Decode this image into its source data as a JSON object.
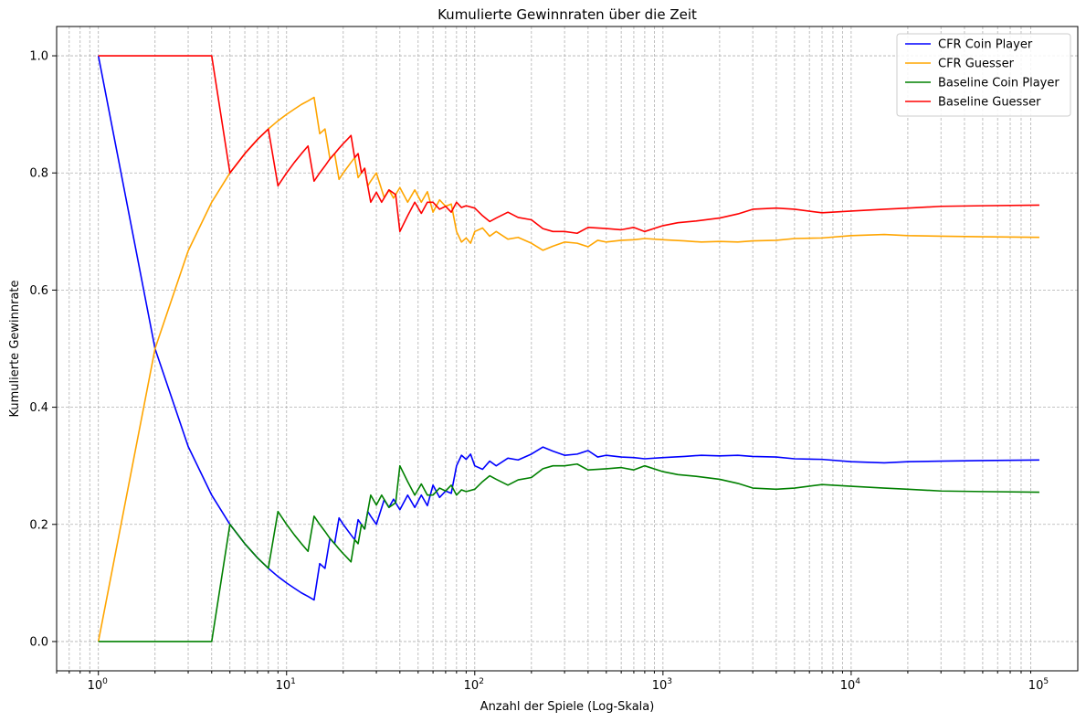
{
  "chart_data": {
    "type": "line",
    "title": "Kumulierte Gewinnraten über die Zeit",
    "xlabel": "Anzahl der Spiele (Log-Skala)",
    "ylabel": "Kumulierte Gewinnrate",
    "xscale": "log",
    "xlim": [
      0.6,
      160000
    ],
    "ylim": [
      -0.05,
      1.05
    ],
    "x_ticks": [
      1,
      10,
      100,
      1000,
      10000,
      100000
    ],
    "x_tick_labels": [
      {
        "base": "10",
        "exp": "0"
      },
      {
        "base": "10",
        "exp": "1"
      },
      {
        "base": "10",
        "exp": "2"
      },
      {
        "base": "10",
        "exp": "3"
      },
      {
        "base": "10",
        "exp": "4"
      },
      {
        "base": "10",
        "exp": "5"
      }
    ],
    "y_ticks": [
      0.0,
      0.2,
      0.4,
      0.6,
      0.8,
      1.0
    ],
    "y_tick_labels": [
      "0.0",
      "0.2",
      "0.4",
      "0.6",
      "0.8",
      "1.0"
    ],
    "grid": true,
    "legend_position": "top-right",
    "series": [
      {
        "name": "CFR Coin Player",
        "color": "#0000ff",
        "points": [
          [
            1,
            1.0
          ],
          [
            2,
            0.5
          ],
          [
            3,
            0.333
          ],
          [
            4,
            0.25
          ],
          [
            5,
            0.2
          ],
          [
            6,
            0.167
          ],
          [
            7,
            0.143
          ],
          [
            8,
            0.125
          ],
          [
            9,
            0.111
          ],
          [
            10,
            0.1
          ],
          [
            11,
            0.091
          ],
          [
            12,
            0.083
          ],
          [
            13,
            0.077
          ],
          [
            14,
            0.071
          ],
          [
            15,
            0.133
          ],
          [
            16,
            0.125
          ],
          [
            17,
            0.176
          ],
          [
            18,
            0.167
          ],
          [
            19,
            0.211
          ],
          [
            20,
            0.2
          ],
          [
            22,
            0.182
          ],
          [
            23,
            0.174
          ],
          [
            24,
            0.208
          ],
          [
            26,
            0.192
          ],
          [
            27,
            0.222
          ],
          [
            28,
            0.214
          ],
          [
            30,
            0.2
          ],
          [
            33,
            0.242
          ],
          [
            35,
            0.229
          ],
          [
            37,
            0.243
          ],
          [
            40,
            0.225
          ],
          [
            44,
            0.25
          ],
          [
            48,
            0.229
          ],
          [
            52,
            0.25
          ],
          [
            56,
            0.232
          ],
          [
            60,
            0.267
          ],
          [
            65,
            0.246
          ],
          [
            70,
            0.257
          ],
          [
            75,
            0.253
          ],
          [
            80,
            0.3
          ],
          [
            85,
            0.318
          ],
          [
            90,
            0.311
          ],
          [
            95,
            0.32
          ],
          [
            100,
            0.3
          ],
          [
            110,
            0.294
          ],
          [
            120,
            0.308
          ],
          [
            130,
            0.3
          ],
          [
            150,
            0.313
          ],
          [
            170,
            0.31
          ],
          [
            200,
            0.32
          ],
          [
            230,
            0.332
          ],
          [
            260,
            0.325
          ],
          [
            300,
            0.318
          ],
          [
            350,
            0.32
          ],
          [
            400,
            0.326
          ],
          [
            450,
            0.315
          ],
          [
            500,
            0.318
          ],
          [
            600,
            0.315
          ],
          [
            700,
            0.314
          ],
          [
            800,
            0.312
          ],
          [
            1000,
            0.314
          ],
          [
            1300,
            0.316
          ],
          [
            1600,
            0.318
          ],
          [
            2000,
            0.317
          ],
          [
            2500,
            0.318
          ],
          [
            3000,
            0.316
          ],
          [
            4000,
            0.315
          ],
          [
            5000,
            0.312
          ],
          [
            7000,
            0.311
          ],
          [
            10000,
            0.307
          ],
          [
            15000,
            0.305
          ],
          [
            20000,
            0.307
          ],
          [
            30000,
            0.308
          ],
          [
            50000,
            0.309
          ],
          [
            100000,
            0.31
          ]
        ]
      },
      {
        "name": "CFR Guesser",
        "color": "#ffa500",
        "points": [
          [
            1,
            0.0
          ],
          [
            2,
            0.5
          ],
          [
            3,
            0.667
          ],
          [
            4,
            0.75
          ],
          [
            5,
            0.8
          ],
          [
            6,
            0.833
          ],
          [
            7,
            0.857
          ],
          [
            8,
            0.875
          ],
          [
            9,
            0.889
          ],
          [
            10,
            0.9
          ],
          [
            11,
            0.909
          ],
          [
            12,
            0.917
          ],
          [
            13,
            0.923
          ],
          [
            14,
            0.929
          ],
          [
            15,
            0.867
          ],
          [
            16,
            0.875
          ],
          [
            17,
            0.824
          ],
          [
            18,
            0.833
          ],
          [
            19,
            0.789
          ],
          [
            20,
            0.8
          ],
          [
            22,
            0.818
          ],
          [
            23,
            0.826
          ],
          [
            24,
            0.792
          ],
          [
            26,
            0.808
          ],
          [
            27,
            0.778
          ],
          [
            28,
            0.786
          ],
          [
            30,
            0.8
          ],
          [
            33,
            0.758
          ],
          [
            35,
            0.771
          ],
          [
            37,
            0.757
          ],
          [
            40,
            0.775
          ],
          [
            44,
            0.75
          ],
          [
            48,
            0.771
          ],
          [
            52,
            0.75
          ],
          [
            56,
            0.768
          ],
          [
            60,
            0.733
          ],
          [
            65,
            0.754
          ],
          [
            70,
            0.743
          ],
          [
            75,
            0.747
          ],
          [
            80,
            0.7
          ],
          [
            85,
            0.682
          ],
          [
            90,
            0.689
          ],
          [
            95,
            0.68
          ],
          [
            100,
            0.7
          ],
          [
            110,
            0.706
          ],
          [
            120,
            0.692
          ],
          [
            130,
            0.7
          ],
          [
            150,
            0.687
          ],
          [
            170,
            0.69
          ],
          [
            200,
            0.68
          ],
          [
            230,
            0.668
          ],
          [
            260,
            0.675
          ],
          [
            300,
            0.682
          ],
          [
            350,
            0.68
          ],
          [
            400,
            0.674
          ],
          [
            450,
            0.685
          ],
          [
            500,
            0.682
          ],
          [
            600,
            0.685
          ],
          [
            700,
            0.686
          ],
          [
            800,
            0.688
          ],
          [
            1000,
            0.686
          ],
          [
            1300,
            0.684
          ],
          [
            1600,
            0.682
          ],
          [
            2000,
            0.683
          ],
          [
            2500,
            0.682
          ],
          [
            3000,
            0.684
          ],
          [
            4000,
            0.685
          ],
          [
            5000,
            0.688
          ],
          [
            7000,
            0.689
          ],
          [
            10000,
            0.693
          ],
          [
            15000,
            0.695
          ],
          [
            20000,
            0.693
          ],
          [
            30000,
            0.692
          ],
          [
            50000,
            0.691
          ],
          [
            100000,
            0.69
          ]
        ]
      },
      {
        "name": "Baseline Coin Player",
        "color": "#008000",
        "points": [
          [
            1,
            0.0
          ],
          [
            2,
            0.0
          ],
          [
            3,
            0.0
          ],
          [
            4,
            0.0
          ],
          [
            5,
            0.2
          ],
          [
            6,
            0.167
          ],
          [
            7,
            0.143
          ],
          [
            8,
            0.125
          ],
          [
            9,
            0.222
          ],
          [
            10,
            0.2
          ],
          [
            11,
            0.182
          ],
          [
            12,
            0.167
          ],
          [
            13,
            0.154
          ],
          [
            14,
            0.214
          ],
          [
            15,
            0.2
          ],
          [
            16,
            0.188
          ],
          [
            17,
            0.176
          ],
          [
            18,
            0.167
          ],
          [
            19,
            0.158
          ],
          [
            20,
            0.15
          ],
          [
            21,
            0.143
          ],
          [
            22,
            0.136
          ],
          [
            23,
            0.174
          ],
          [
            24,
            0.167
          ],
          [
            25,
            0.2
          ],
          [
            26,
            0.192
          ],
          [
            27,
            0.222
          ],
          [
            28,
            0.25
          ],
          [
            30,
            0.233
          ],
          [
            32,
            0.25
          ],
          [
            35,
            0.229
          ],
          [
            38,
            0.237
          ],
          [
            40,
            0.3
          ],
          [
            44,
            0.273
          ],
          [
            48,
            0.25
          ],
          [
            52,
            0.269
          ],
          [
            56,
            0.25
          ],
          [
            60,
            0.25
          ],
          [
            65,
            0.262
          ],
          [
            70,
            0.257
          ],
          [
            75,
            0.267
          ],
          [
            80,
            0.25
          ],
          [
            85,
            0.259
          ],
          [
            90,
            0.256
          ],
          [
            100,
            0.26
          ],
          [
            110,
            0.273
          ],
          [
            120,
            0.283
          ],
          [
            130,
            0.277
          ],
          [
            150,
            0.267
          ],
          [
            170,
            0.276
          ],
          [
            200,
            0.28
          ],
          [
            230,
            0.295
          ],
          [
            260,
            0.3
          ],
          [
            300,
            0.3
          ],
          [
            350,
            0.303
          ],
          [
            400,
            0.293
          ],
          [
            500,
            0.295
          ],
          [
            600,
            0.297
          ],
          [
            700,
            0.293
          ],
          [
            800,
            0.3
          ],
          [
            1000,
            0.29
          ],
          [
            1200,
            0.285
          ],
          [
            1500,
            0.282
          ],
          [
            2000,
            0.277
          ],
          [
            2500,
            0.27
          ],
          [
            3000,
            0.262
          ],
          [
            4000,
            0.26
          ],
          [
            5000,
            0.262
          ],
          [
            7000,
            0.268
          ],
          [
            10000,
            0.265
          ],
          [
            15000,
            0.262
          ],
          [
            20000,
            0.26
          ],
          [
            30000,
            0.257
          ],
          [
            50000,
            0.256
          ],
          [
            100000,
            0.255
          ]
        ]
      },
      {
        "name": "Baseline Guesser",
        "color": "#ff0000",
        "points": [
          [
            1,
            1.0
          ],
          [
            2,
            1.0
          ],
          [
            3,
            1.0
          ],
          [
            4,
            1.0
          ],
          [
            5,
            0.8
          ],
          [
            6,
            0.833
          ],
          [
            7,
            0.857
          ],
          [
            8,
            0.875
          ],
          [
            9,
            0.778
          ],
          [
            10,
            0.8
          ],
          [
            11,
            0.818
          ],
          [
            12,
            0.833
          ],
          [
            13,
            0.846
          ],
          [
            14,
            0.786
          ],
          [
            15,
            0.8
          ],
          [
            16,
            0.812
          ],
          [
            17,
            0.824
          ],
          [
            18,
            0.833
          ],
          [
            19,
            0.842
          ],
          [
            20,
            0.85
          ],
          [
            21,
            0.857
          ],
          [
            22,
            0.864
          ],
          [
            23,
            0.826
          ],
          [
            24,
            0.833
          ],
          [
            25,
            0.8
          ],
          [
            26,
            0.808
          ],
          [
            27,
            0.778
          ],
          [
            28,
            0.75
          ],
          [
            30,
            0.767
          ],
          [
            32,
            0.75
          ],
          [
            35,
            0.771
          ],
          [
            38,
            0.763
          ],
          [
            40,
            0.7
          ],
          [
            44,
            0.727
          ],
          [
            48,
            0.75
          ],
          [
            52,
            0.731
          ],
          [
            56,
            0.75
          ],
          [
            60,
            0.75
          ],
          [
            65,
            0.738
          ],
          [
            70,
            0.743
          ],
          [
            75,
            0.733
          ],
          [
            80,
            0.75
          ],
          [
            85,
            0.741
          ],
          [
            90,
            0.744
          ],
          [
            100,
            0.74
          ],
          [
            110,
            0.727
          ],
          [
            120,
            0.717
          ],
          [
            130,
            0.723
          ],
          [
            150,
            0.733
          ],
          [
            170,
            0.724
          ],
          [
            200,
            0.72
          ],
          [
            230,
            0.705
          ],
          [
            260,
            0.7
          ],
          [
            300,
            0.7
          ],
          [
            350,
            0.697
          ],
          [
            400,
            0.707
          ],
          [
            500,
            0.705
          ],
          [
            600,
            0.703
          ],
          [
            700,
            0.707
          ],
          [
            800,
            0.7
          ],
          [
            1000,
            0.71
          ],
          [
            1200,
            0.715
          ],
          [
            1500,
            0.718
          ],
          [
            2000,
            0.723
          ],
          [
            2500,
            0.73
          ],
          [
            3000,
            0.738
          ],
          [
            4000,
            0.74
          ],
          [
            5000,
            0.738
          ],
          [
            7000,
            0.732
          ],
          [
            10000,
            0.735
          ],
          [
            15000,
            0.738
          ],
          [
            20000,
            0.74
          ],
          [
            30000,
            0.743
          ],
          [
            50000,
            0.744
          ],
          [
            100000,
            0.745
          ]
        ]
      }
    ]
  }
}
